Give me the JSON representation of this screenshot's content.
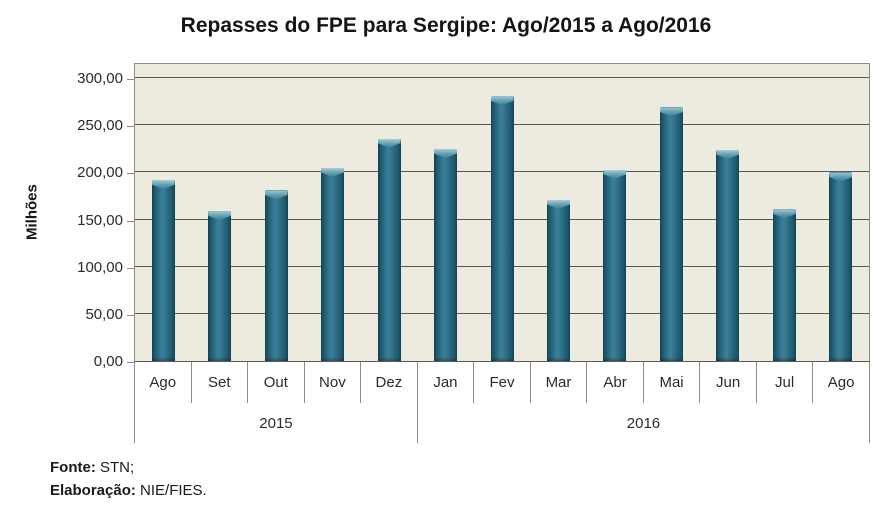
{
  "title": "Repasses do FPE para Sergipe: Ago/2015 a Ago/2016",
  "chart_data": {
    "type": "bar",
    "title": "Repasses do FPE para Sergipe: Ago/2015 a Ago/2016",
    "ylabel": "Milhões",
    "xlabel": "",
    "categories": [
      "Ago",
      "Set",
      "Out",
      "Nov",
      "Dez",
      "Jan",
      "Fev",
      "Mar",
      "Abr",
      "Mai",
      "Jun",
      "Jul",
      "Ago"
    ],
    "year_groups": [
      {
        "label": "2015",
        "span": 5
      },
      {
        "label": "2016",
        "span": 8
      }
    ],
    "values": [
      192,
      159,
      181,
      205,
      236,
      225,
      281,
      171,
      203,
      269,
      224,
      161,
      200
    ],
    "ylim": [
      0,
      315
    ],
    "yticks": [
      0,
      50,
      100,
      150,
      200,
      250,
      300
    ],
    "ytick_labels": [
      "0,00",
      "50,00",
      "100,00",
      "150,00",
      "200,00",
      "250,00",
      "300,00"
    ],
    "grid": "horizontal",
    "legend": "none"
  },
  "footer": {
    "source_label": "Fonte:",
    "source_value": " STN;",
    "elaboration_label": "Elaboração:",
    "elaboration_value": " NIE/FIES."
  },
  "colors": {
    "bar_teal": "#2E718A",
    "bar_edge_dark": "#17485A",
    "bar_cap_light": "#A9CED9",
    "plot_background": "#EDEAE0",
    "gridline": "#595959",
    "axis_line": "#8C8C85",
    "text": "#1A1A1A",
    "page_background": "#FFFFFF"
  }
}
